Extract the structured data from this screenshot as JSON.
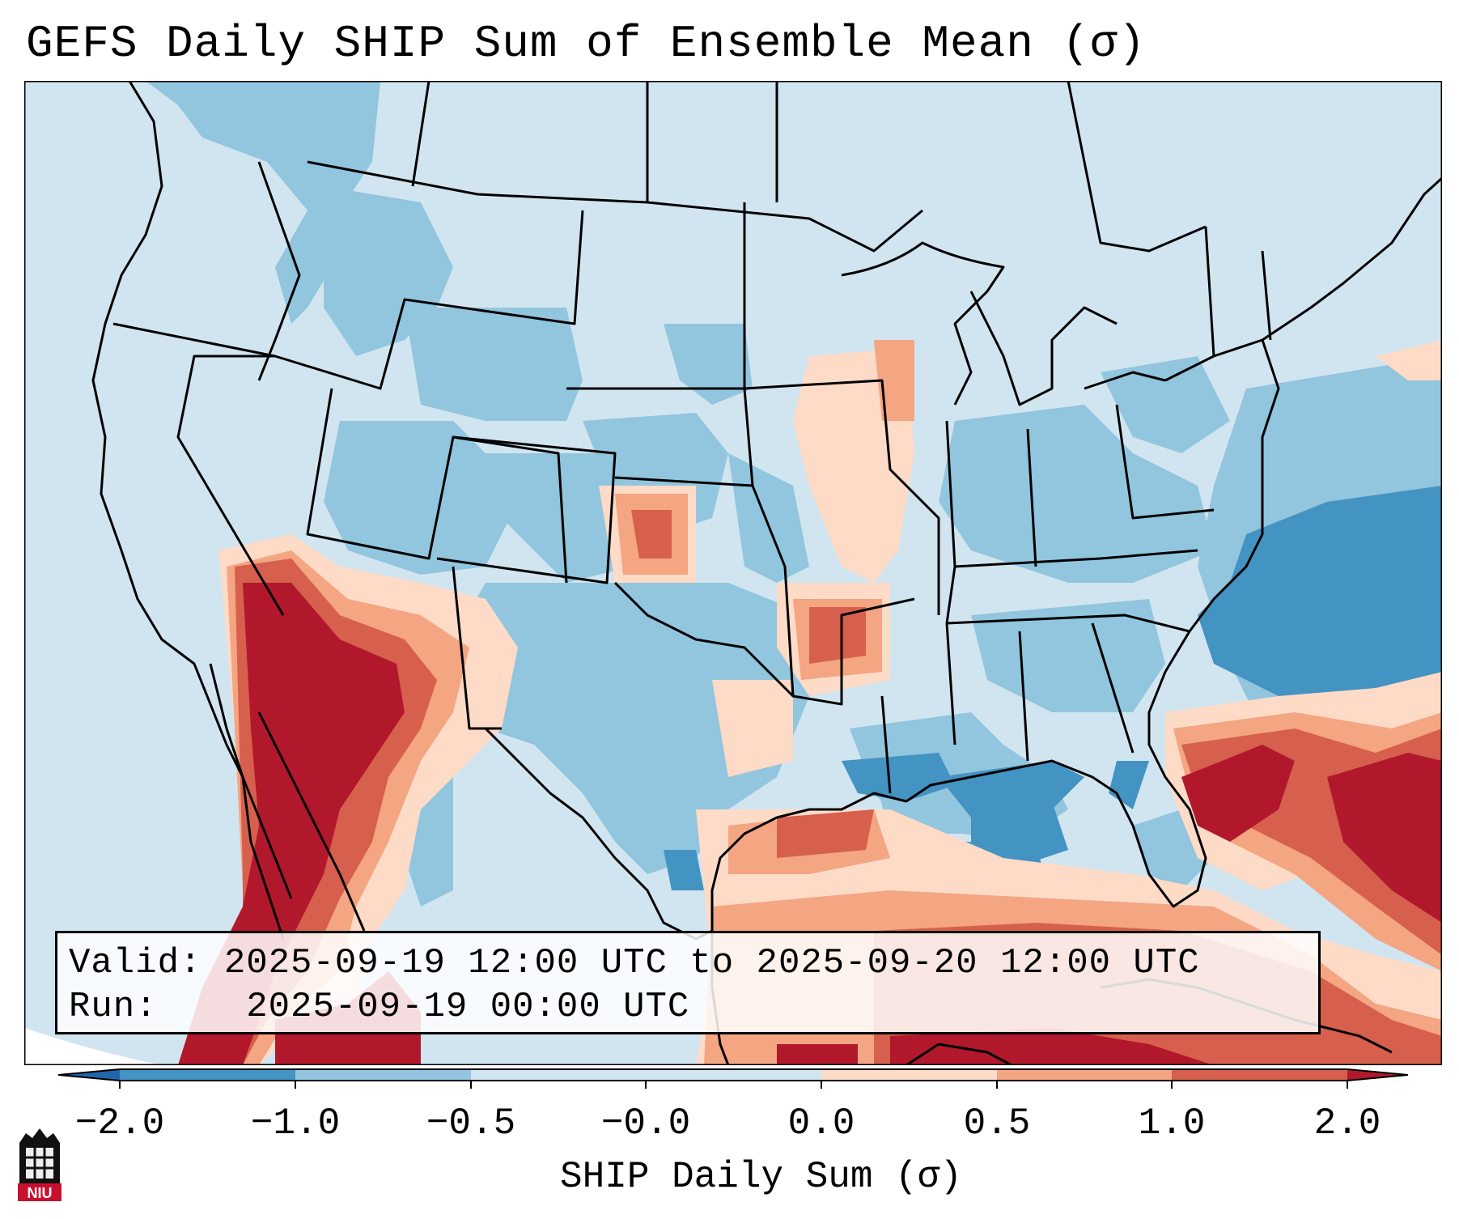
{
  "title": "GEFS Daily SHIP Sum of Ensemble Mean (σ)",
  "info": {
    "valid_label": "Valid:",
    "valid_value": "2025-09-19 12:00 UTC to 2025-09-20 12:00 UTC",
    "run_label": "Run:",
    "run_value": "2025-09-19 00:00 UTC"
  },
  "colorbar": {
    "label": "SHIP Daily Sum (σ)",
    "ticks": [
      "−2.0",
      "−1.0",
      "−0.5",
      "−0.0",
      "0.0",
      "0.5",
      "1.0",
      "2.0"
    ],
    "colors": [
      "#4393c3",
      "#92c5de",
      "#d1e5f0",
      "#d1e5f0",
      "#fddbc7",
      "#f4a582",
      "#d6604d",
      "#b2182b"
    ],
    "extend_low_color": "#2166ac",
    "extend_high_color": "#b2182b"
  },
  "logo": {
    "text": "NIU"
  },
  "palette": {
    "background_field": "#d1e5f0",
    "light_blue": "#92c5de",
    "mid_blue": "#4393c3",
    "light_red": "#fddbc7",
    "salmon": "#f4a582",
    "red": "#d6604d",
    "dark_red": "#b2182b",
    "outline": "#000000"
  }
}
